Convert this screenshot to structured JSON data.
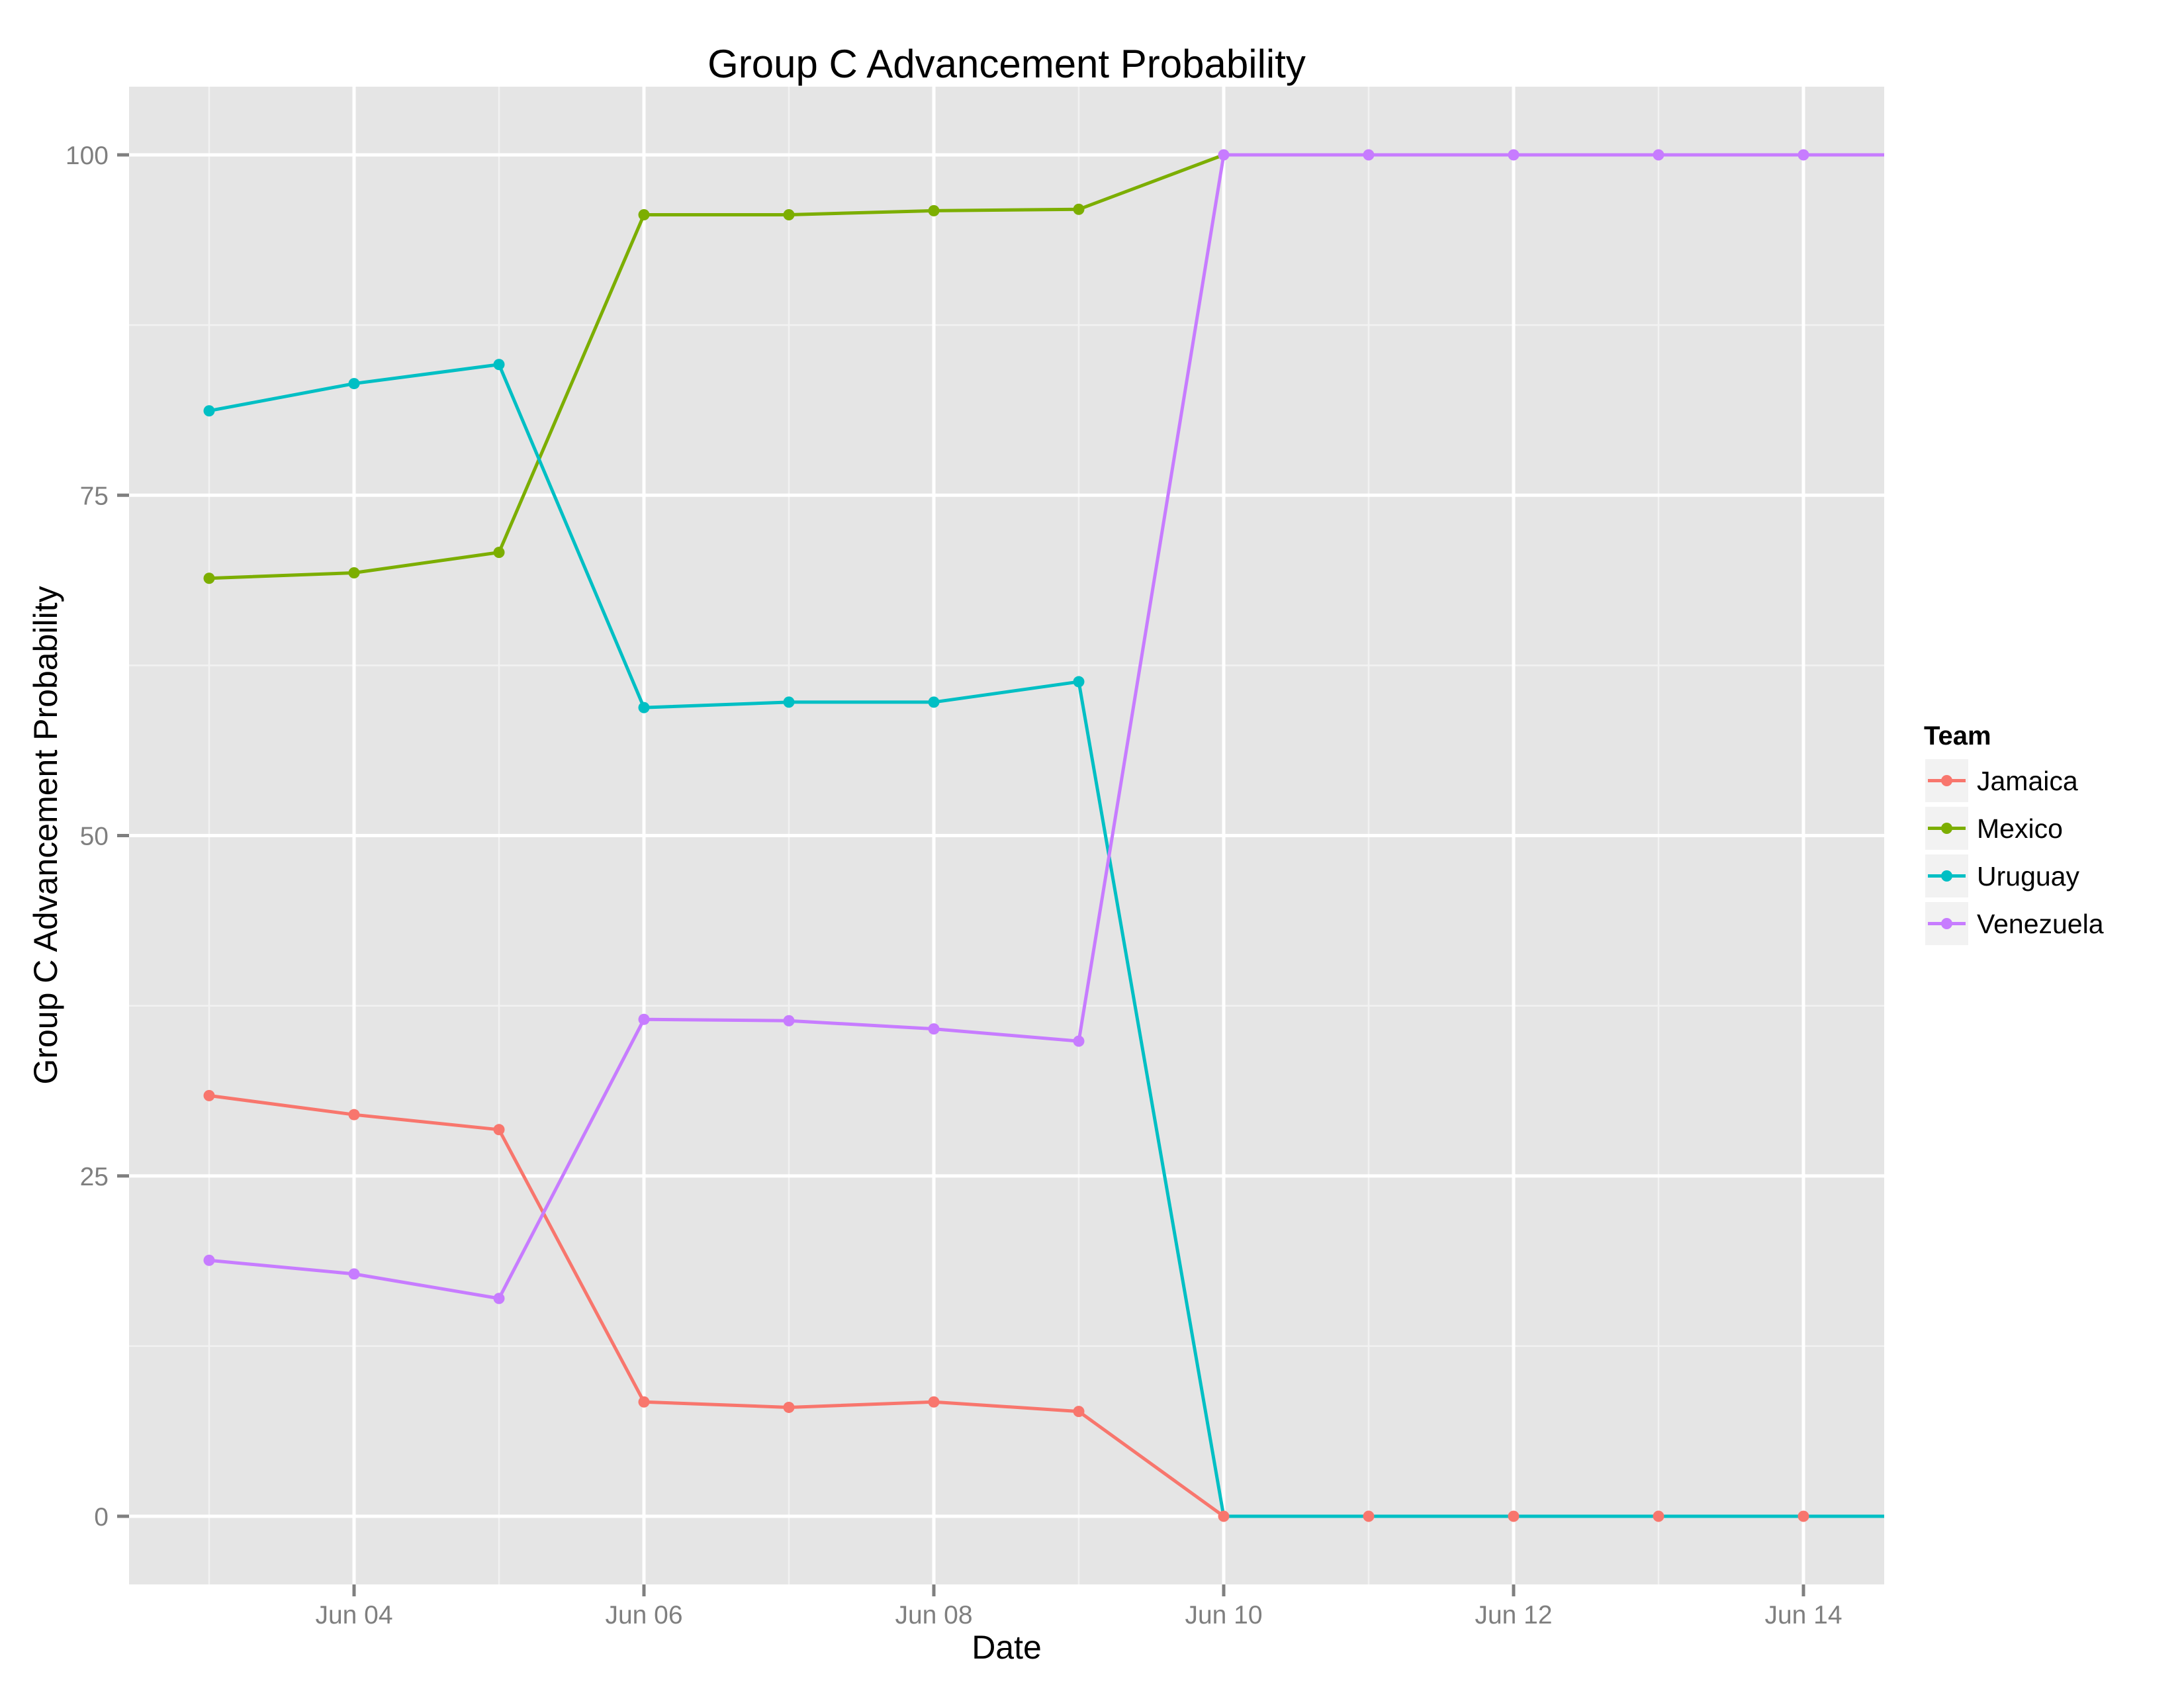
{
  "chart_data": {
    "type": "line",
    "title": "Group C Advancement Probability",
    "xlabel": "Date",
    "ylabel": "Group C Advancement Probability",
    "x": [
      "Jun 03",
      "Jun 04",
      "Jun 05",
      "Jun 06",
      "Jun 07",
      "Jun 08",
      "Jun 09",
      "Jun 10",
      "Jun 11",
      "Jun 12",
      "Jun 13",
      "Jun 14"
    ],
    "x_day_numbers": [
      3,
      4,
      5,
      6,
      7,
      8,
      9,
      10,
      11,
      12,
      13,
      14
    ],
    "x_range_days": [
      2.44,
      14.55
    ],
    "x_ticks": [
      {
        "day": 4,
        "label": "Jun 04"
      },
      {
        "day": 6,
        "label": "Jun 06"
      },
      {
        "day": 8,
        "label": "Jun 08"
      },
      {
        "day": 10,
        "label": "Jun 10"
      },
      {
        "day": 12,
        "label": "Jun 12"
      },
      {
        "day": 14,
        "label": "Jun 14"
      }
    ],
    "y_ticks": [
      0,
      25,
      50,
      75,
      100
    ],
    "ylim": [
      -5,
      105
    ],
    "grid": true,
    "legend": {
      "title": "Team",
      "position": "right"
    },
    "lines_extend_to_right_edge": true,
    "series": [
      {
        "name": "Jamaica",
        "color": "#F8766D",
        "values": [
          30.9,
          29.5,
          28.4,
          8.4,
          8.0,
          8.4,
          7.7,
          0,
          0,
          0,
          0,
          0
        ],
        "edge_value": 0
      },
      {
        "name": "Mexico",
        "color": "#7CAE00",
        "values": [
          68.9,
          69.3,
          70.8,
          95.6,
          95.6,
          95.9,
          96.0,
          100,
          100,
          100,
          100,
          100
        ],
        "edge_value": 100
      },
      {
        "name": "Uruguay",
        "color": "#00BFC4",
        "values": [
          81.2,
          83.2,
          84.6,
          59.4,
          59.8,
          59.8,
          61.3,
          0,
          0,
          0,
          0,
          0
        ],
        "edge_value": 0
      },
      {
        "name": "Venezuela",
        "color": "#C77CFF",
        "values": [
          18.8,
          17.8,
          16.0,
          36.5,
          36.4,
          35.8,
          34.9,
          100,
          100,
          100,
          100,
          100
        ],
        "edge_value": 100
      }
    ]
  },
  "colors": {
    "panel_background": "#E5E5E5",
    "grid_major": "#FFFFFF",
    "grid_minor": "#F2F2F2",
    "axis_text": "#7F7F7F",
    "legend_key_background": "#F2F2F2"
  }
}
